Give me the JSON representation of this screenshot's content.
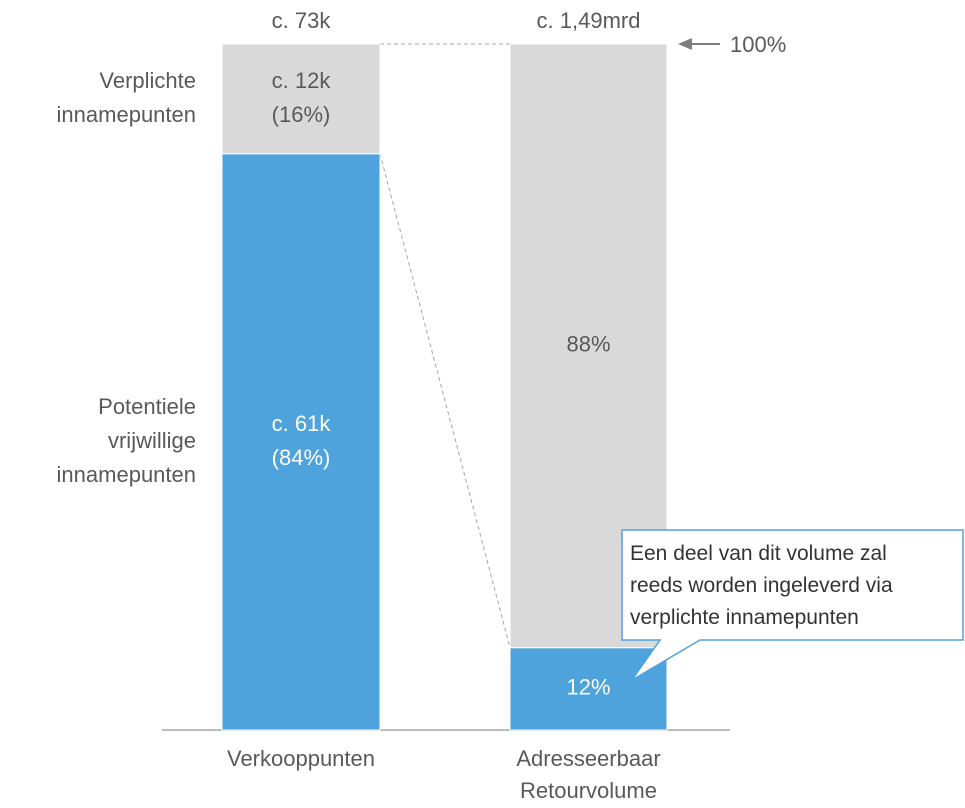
{
  "chart_data": {
    "type": "stacked_bar",
    "categories": [
      "Verkooppunten",
      "Adresseerbaar\nRetourvolume"
    ],
    "series": [
      {
        "name": "Potentiele\nvrijwillige\ninnamepunten",
        "color": "#4fa3dc",
        "text_color": "#ffffff",
        "values": [
          84,
          12
        ],
        "value_labels": [
          "c. 61k\n(84%)",
          "12%"
        ]
      },
      {
        "name": "Verplichte\ninnamepunten",
        "color": "#d9d9d9",
        "text_color": "#595959",
        "values": [
          16,
          88
        ],
        "value_labels": [
          "c. 12k\n(16%)",
          "88%"
        ]
      }
    ],
    "total_labels": [
      "c. 73k",
      "c. 1,49mrd"
    ],
    "ylim": [
      0,
      100
    ],
    "annotations": [
      "100%",
      "Een deel van dit volume zal\nreeds worden ingeleverd via\nverplichte innamepunten"
    ]
  }
}
